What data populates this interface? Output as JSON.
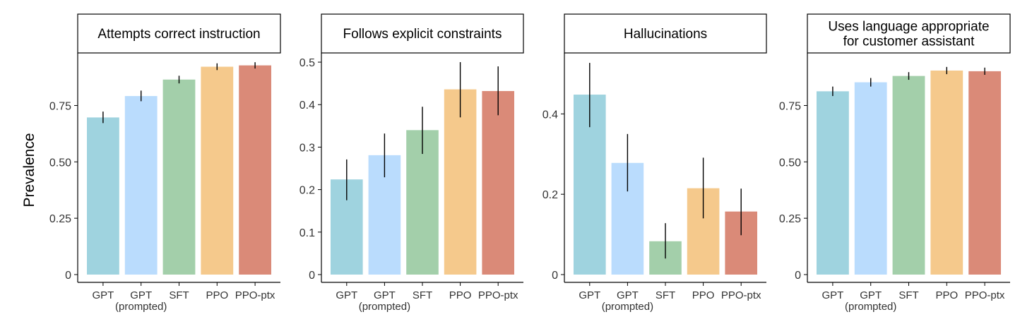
{
  "figure": {
    "ylabel": "Prevalence",
    "models": [
      "GPT",
      "GPT (prompted)",
      "SFT",
      "PPO",
      "PPO-ptx"
    ],
    "model_tick_lines": [
      [
        "GPT"
      ],
      [
        "GPT",
        "(prompted)"
      ],
      [
        "SFT"
      ],
      [
        "PPO"
      ],
      [
        "PPO-ptx"
      ]
    ],
    "colors": [
      "#9fd3df",
      "#badcfd",
      "#a3cfaa",
      "#f5c98c",
      "#da8a78"
    ]
  },
  "chart_data": [
    {
      "type": "bar",
      "title": "Attempts correct instruction",
      "title_lines": [
        "Attempts correct instruction"
      ],
      "categories": [
        "GPT",
        "GPT (prompted)",
        "SFT",
        "PPO",
        "PPO-ptx"
      ],
      "values": [
        0.697,
        0.792,
        0.865,
        0.922,
        0.928
      ],
      "error_low": [
        0.672,
        0.769,
        0.848,
        0.907,
        0.914
      ],
      "error_high": [
        0.723,
        0.816,
        0.882,
        0.937,
        0.942
      ],
      "ylim": [
        0,
        0.98
      ],
      "yticks": [
        0,
        0.25,
        0.5,
        0.75
      ],
      "ytick_labels": [
        "0",
        "0.25",
        "0.50",
        "0.75"
      ],
      "ylabel": "Prevalence"
    },
    {
      "type": "bar",
      "title": "Follows explicit constraints",
      "title_lines": [
        "Follows explicit constraints"
      ],
      "categories": [
        "GPT",
        "GPT (prompted)",
        "SFT",
        "PPO",
        "PPO-ptx"
      ],
      "values": [
        0.224,
        0.281,
        0.34,
        0.436,
        0.432
      ],
      "error_low": [
        0.175,
        0.229,
        0.284,
        0.37,
        0.375
      ],
      "error_high": [
        0.271,
        0.332,
        0.395,
        0.5,
        0.49
      ],
      "ylim": [
        0,
        0.52
      ],
      "yticks": [
        0,
        0.1,
        0.2,
        0.3,
        0.4,
        0.5
      ],
      "ytick_labels": [
        "0",
        "0.1",
        "0.2",
        "0.3",
        "0.4",
        "0.5"
      ]
    },
    {
      "type": "bar",
      "title": "Hallucinations",
      "title_lines": [
        "Hallucinations"
      ],
      "categories": [
        "GPT",
        "GPT (prompted)",
        "SFT",
        "PPO",
        "PPO-ptx"
      ],
      "values": [
        0.448,
        0.278,
        0.083,
        0.215,
        0.157
      ],
      "error_low": [
        0.367,
        0.207,
        0.04,
        0.14,
        0.098
      ],
      "error_high": [
        0.527,
        0.35,
        0.128,
        0.291,
        0.214
      ],
      "ylim": [
        0,
        0.55
      ],
      "yticks": [
        0,
        0.2,
        0.4
      ],
      "ytick_labels": [
        "0",
        "0.2",
        "0.4"
      ]
    },
    {
      "type": "bar",
      "title": "Uses language appropriate for customer assistant",
      "title_lines": [
        "Uses language appropriate",
        "for customer assistant"
      ],
      "categories": [
        "GPT",
        "GPT (prompted)",
        "SFT",
        "PPO",
        "PPO-ptx"
      ],
      "values": [
        0.813,
        0.853,
        0.881,
        0.905,
        0.902
      ],
      "error_low": [
        0.792,
        0.834,
        0.864,
        0.889,
        0.886
      ],
      "error_high": [
        0.834,
        0.872,
        0.898,
        0.921,
        0.918
      ],
      "ylim": [
        0,
        0.98
      ],
      "yticks": [
        0,
        0.25,
        0.5,
        0.75
      ],
      "ytick_labels": [
        "0",
        "0.25",
        "0.50",
        "0.75"
      ]
    }
  ]
}
